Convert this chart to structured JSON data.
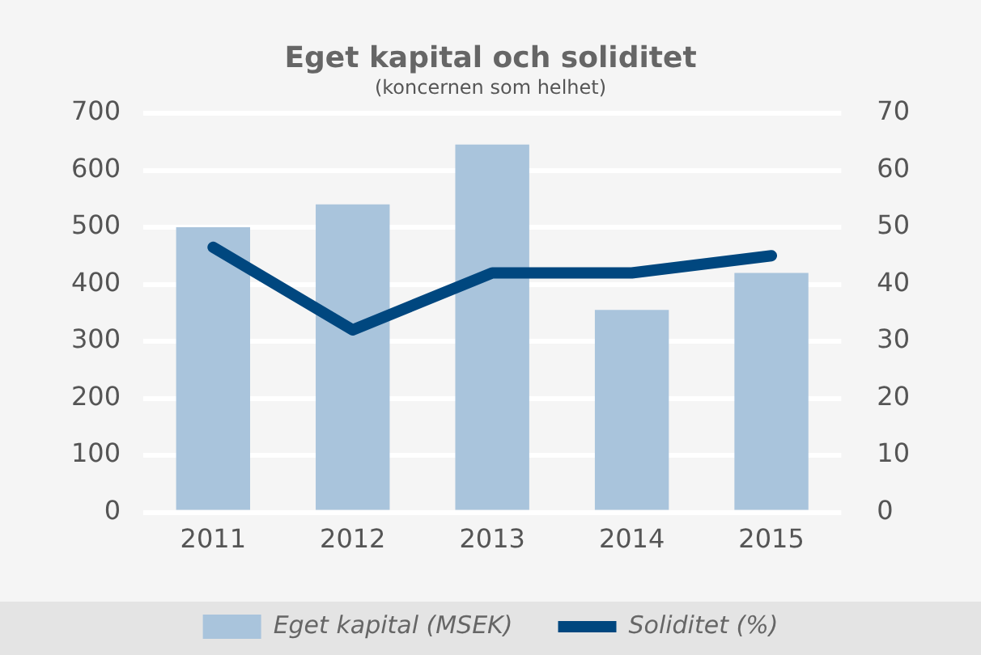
{
  "chart_data": {
    "type": "bar",
    "title": "Eget kapital och soliditet",
    "subtitle": "(koncernen som helhet)",
    "categories": [
      "2011",
      "2012",
      "2013",
      "2014",
      "2015"
    ],
    "series": [
      {
        "name": "Eget kapital (MSEK)",
        "color": "#a9c4dc",
        "values": [
          500,
          540,
          645,
          355,
          420
        ]
      },
      {
        "name": "Soliditet (%)",
        "type": "line",
        "axis": "y2",
        "color": "#00477f",
        "values": [
          46.5,
          32,
          42,
          42,
          45
        ]
      }
    ],
    "ylim": [
      0,
      700
    ],
    "yticks": [
      0,
      100,
      200,
      300,
      400,
      500,
      600,
      700
    ],
    "y2lim": [
      0,
      70
    ],
    "y2ticks": [
      0,
      10,
      20,
      30,
      40,
      50,
      60,
      70
    ],
    "grid": "y",
    "legend": "bottom",
    "marker": "none",
    "line_style": "solid"
  }
}
